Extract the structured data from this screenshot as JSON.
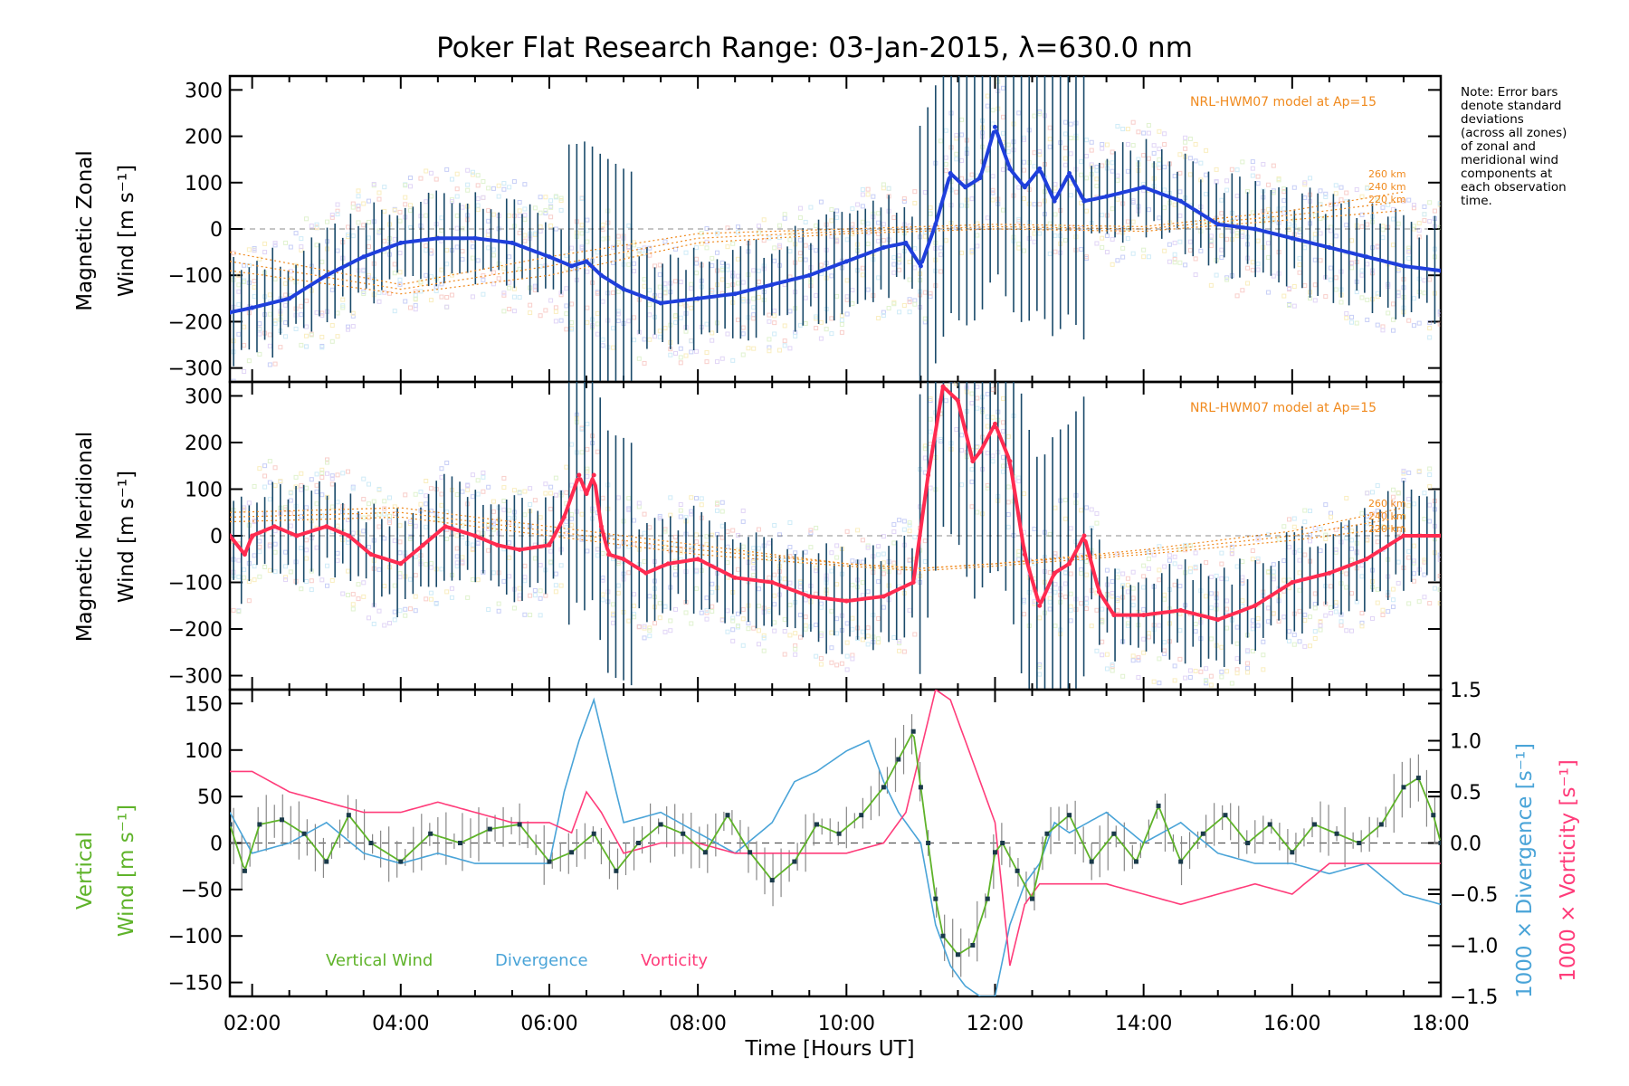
{
  "title": "Poker Flat Research Range: 03-Jan-2015, λ=630.0 nm",
  "note_lines": [
    "Note: Error bars",
    "denote standard",
    "deviations",
    "(across all zones)",
    "of zonal and",
    "meridional wind",
    "components at",
    "each observation",
    "time."
  ],
  "model_label": "NRL-HWM07 model at Ap=15",
  "model_altitudes": [
    "260 km",
    "240 km",
    "220 km"
  ],
  "colors": {
    "zonal": "#1f3fdc",
    "meridional": "#ff2b50",
    "vertical": "#5fb32a",
    "divergence": "#4aa4d8",
    "vorticity": "#ff3c7a",
    "model": "#f08a1e",
    "errorbar": "#1a4a6a"
  },
  "chart_data": [
    {
      "type": "line",
      "name": "zonal",
      "ylabel": [
        "Magnetic Zonal",
        "Wind [m s⁻¹]"
      ],
      "ylim": [
        -330,
        330
      ],
      "yticks": [
        300,
        200,
        100,
        0,
        -100,
        -200,
        -300
      ],
      "xlim": [
        1.7,
        18.0
      ],
      "series": [
        {
          "name": "",
          "x": [
            1.7,
            2.0,
            2.5,
            3.0,
            3.5,
            4.0,
            4.5,
            5.0,
            5.5,
            6.0,
            6.3,
            6.5,
            6.7,
            7.0,
            7.5,
            8.0,
            8.5,
            9.0,
            9.5,
            10.0,
            10.5,
            10.8,
            11.0,
            11.2,
            11.4,
            11.6,
            11.8,
            12.0,
            12.2,
            12.4,
            12.6,
            12.8,
            13.0,
            13.2,
            13.5,
            14.0,
            14.5,
            15.0,
            15.5,
            16.0,
            16.5,
            17.0,
            17.5,
            18.0
          ],
          "values": [
            -180,
            -170,
            -150,
            -100,
            -60,
            -30,
            -20,
            -20,
            -30,
            -60,
            -80,
            -70,
            -100,
            -130,
            -160,
            -150,
            -140,
            -120,
            -100,
            -70,
            -40,
            -30,
            -80,
            10,
            120,
            90,
            110,
            220,
            130,
            90,
            130,
            60,
            120,
            60,
            70,
            90,
            60,
            10,
            0,
            -20,
            -40,
            -60,
            -80,
            -90
          ]
        }
      ],
      "model_series": [
        {
          "name": "260 km",
          "x": [
            1.7,
            4.0,
            6.0,
            8.0,
            10.0,
            12.0,
            14.0,
            16.0,
            17.5
          ],
          "values": [
            -50,
            -120,
            -60,
            -10,
            0,
            10,
            5,
            40,
            80
          ]
        },
        {
          "name": "240 km",
          "x": [
            1.7,
            4.0,
            6.0,
            8.0,
            10.0,
            12.0,
            14.0,
            16.0,
            17.5
          ],
          "values": [
            -70,
            -130,
            -80,
            -20,
            -5,
            5,
            0,
            30,
            60
          ]
        },
        {
          "name": "220 km",
          "x": [
            1.7,
            4.0,
            6.0,
            8.0,
            10.0,
            12.0,
            14.0,
            16.0,
            17.5
          ],
          "values": [
            -90,
            -140,
            -100,
            -30,
            -10,
            0,
            -5,
            20,
            40
          ]
        }
      ]
    },
    {
      "type": "line",
      "name": "meridional",
      "ylabel": [
        "Magnetic Meridional",
        "Wind [m s⁻¹]"
      ],
      "ylim": [
        -330,
        330
      ],
      "yticks": [
        300,
        200,
        100,
        0,
        -100,
        -200,
        -300
      ],
      "xlim": [
        1.7,
        18.0
      ],
      "series": [
        {
          "name": "",
          "x": [
            1.7,
            1.9,
            2.0,
            2.3,
            2.6,
            3.0,
            3.3,
            3.6,
            4.0,
            4.3,
            4.6,
            5.0,
            5.3,
            5.6,
            6.0,
            6.2,
            6.4,
            6.5,
            6.6,
            6.7,
            6.8,
            7.0,
            7.3,
            7.6,
            8.0,
            8.5,
            9.0,
            9.5,
            10.0,
            10.5,
            10.9,
            11.1,
            11.3,
            11.5,
            11.7,
            11.8,
            12.0,
            12.2,
            12.4,
            12.6,
            12.8,
            13.0,
            13.2,
            13.4,
            13.6,
            14.0,
            14.5,
            15.0,
            15.5,
            16.0,
            16.5,
            17.0,
            17.5,
            18.0
          ],
          "values": [
            0,
            -40,
            0,
            20,
            0,
            20,
            0,
            -40,
            -60,
            -20,
            20,
            0,
            -20,
            -30,
            -20,
            40,
            130,
            90,
            130,
            20,
            -40,
            -50,
            -80,
            -60,
            -50,
            -90,
            -100,
            -130,
            -140,
            -130,
            -100,
            130,
            320,
            290,
            160,
            180,
            240,
            160,
            -40,
            -150,
            -80,
            -60,
            0,
            -120,
            -170,
            -170,
            -160,
            -180,
            -150,
            -100,
            -80,
            -50,
            0,
            0
          ]
        }
      ],
      "model_series": [
        {
          "name": "260 km",
          "x": [
            1.7,
            4.0,
            6.0,
            8.0,
            10.0,
            11.0,
            12.0,
            14.0,
            16.0,
            17.5
          ],
          "values": [
            50,
            60,
            20,
            -20,
            -60,
            -70,
            -60,
            -30,
            10,
            60
          ]
        },
        {
          "name": "240 km",
          "x": [
            1.7,
            4.0,
            6.0,
            8.0,
            10.0,
            11.0,
            12.0,
            14.0,
            16.0,
            17.5
          ],
          "values": [
            40,
            50,
            10,
            -30,
            -60,
            -70,
            -60,
            -35,
            0,
            40
          ]
        },
        {
          "name": "220 km",
          "x": [
            1.7,
            4.0,
            6.0,
            8.0,
            10.0,
            11.0,
            12.0,
            14.0,
            16.0,
            17.5
          ],
          "values": [
            30,
            40,
            0,
            -40,
            -65,
            -75,
            -65,
            -40,
            -10,
            20
          ]
        }
      ]
    },
    {
      "type": "line",
      "name": "vertical",
      "ylabel_green": [
        "Vertical",
        "Wind [m s⁻¹]"
      ],
      "right_label_blue": "1000 × Divergence [s⁻¹]",
      "right_label_pink": "1000 × Vorticity [s⁻¹]",
      "ylim": [
        -165,
        165
      ],
      "yticks": [
        150,
        100,
        50,
        0,
        -50,
        -100,
        -150
      ],
      "y2lim": [
        -1.5,
        1.5
      ],
      "y2ticks": [
        "1.5",
        "1.0",
        "0.5",
        "0.0",
        "−0.5",
        "−1.0",
        "−1.5"
      ],
      "xlim": [
        1.7,
        18.0
      ],
      "xticks": [
        "02:00",
        "04:00",
        "06:00",
        "08:00",
        "10:00",
        "12:00",
        "14:00",
        "16:00",
        "18:00"
      ],
      "xlabel": "Time [Hours UT]",
      "legend": [
        "Vertical Wind",
        "Divergence",
        "Vorticity"
      ],
      "series": [
        {
          "name": "Vertical Wind",
          "x": [
            1.7,
            1.9,
            2.1,
            2.4,
            2.7,
            3.0,
            3.3,
            3.6,
            4.0,
            4.4,
            4.8,
            5.2,
            5.6,
            6.0,
            6.3,
            6.6,
            6.9,
            7.2,
            7.5,
            7.8,
            8.1,
            8.4,
            8.7,
            9.0,
            9.3,
            9.6,
            9.9,
            10.2,
            10.5,
            10.7,
            10.9,
            11.0,
            11.1,
            11.2,
            11.3,
            11.5,
            11.7,
            11.9,
            12.0,
            12.1,
            12.3,
            12.5,
            12.7,
            13.0,
            13.3,
            13.6,
            13.9,
            14.2,
            14.5,
            14.8,
            15.1,
            15.4,
            15.7,
            16.0,
            16.3,
            16.6,
            16.9,
            17.2,
            17.5,
            17.7,
            17.9,
            18.0
          ],
          "values": [
            20,
            -30,
            20,
            25,
            10,
            -20,
            30,
            0,
            -20,
            10,
            0,
            15,
            20,
            -20,
            -10,
            10,
            -30,
            0,
            20,
            10,
            -10,
            30,
            -10,
            -40,
            -20,
            20,
            10,
            30,
            60,
            90,
            120,
            60,
            0,
            -60,
            -100,
            -120,
            -110,
            -60,
            -10,
            0,
            -30,
            -60,
            10,
            30,
            -20,
            10,
            -20,
            40,
            -20,
            10,
            30,
            0,
            20,
            -10,
            20,
            10,
            0,
            20,
            60,
            70,
            30,
            0
          ]
        },
        {
          "name": "Divergence",
          "x": [
            1.7,
            2.0,
            2.5,
            3.0,
            3.5,
            4.0,
            4.5,
            5.0,
            5.5,
            6.0,
            6.2,
            6.4,
            6.6,
            6.8,
            7.0,
            7.5,
            8.0,
            8.5,
            9.0,
            9.3,
            9.6,
            10.0,
            10.3,
            10.5,
            10.7,
            11.0,
            11.2,
            11.4,
            11.6,
            11.8,
            12.0,
            12.2,
            12.4,
            12.6,
            12.8,
            13.0,
            13.5,
            14.0,
            14.5,
            15.0,
            15.5,
            16.0,
            16.5,
            17.0,
            17.5,
            18.0
          ],
          "values": [
            0.3,
            -0.1,
            0.0,
            0.2,
            -0.1,
            -0.2,
            -0.1,
            -0.2,
            -0.2,
            -0.2,
            0.5,
            1.0,
            1.4,
            0.8,
            0.2,
            0.3,
            0.1,
            -0.1,
            0.2,
            0.6,
            0.7,
            0.9,
            1.0,
            0.6,
            0.3,
            0.0,
            -0.8,
            -1.2,
            -1.4,
            -1.5,
            -1.5,
            -0.8,
            -0.4,
            -0.2,
            0.2,
            0.1,
            0.3,
            0.0,
            0.2,
            -0.1,
            -0.2,
            -0.2,
            -0.3,
            -0.2,
            -0.5,
            -0.6
          ]
        },
        {
          "name": "Vorticity",
          "x": [
            1.7,
            2.0,
            2.5,
            3.0,
            3.5,
            4.0,
            4.5,
            5.0,
            5.5,
            6.0,
            6.3,
            6.5,
            6.7,
            7.0,
            7.5,
            8.0,
            8.5,
            9.0,
            9.5,
            10.0,
            10.5,
            10.8,
            11.0,
            11.2,
            11.4,
            11.6,
            11.8,
            12.0,
            12.2,
            12.4,
            12.6,
            13.0,
            13.5,
            14.0,
            14.5,
            15.0,
            15.5,
            16.0,
            16.5,
            17.0,
            17.5,
            18.0
          ],
          "values": [
            0.7,
            0.7,
            0.5,
            0.4,
            0.3,
            0.3,
            0.4,
            0.3,
            0.2,
            0.2,
            0.1,
            0.5,
            0.3,
            -0.1,
            0.0,
            0.0,
            -0.1,
            -0.1,
            -0.1,
            -0.1,
            0.0,
            0.3,
            0.9,
            1.5,
            1.4,
            1.0,
            0.6,
            0.2,
            -1.2,
            -0.6,
            -0.4,
            -0.4,
            -0.4,
            -0.5,
            -0.6,
            -0.5,
            -0.4,
            -0.5,
            -0.2,
            -0.2,
            -0.2,
            -0.2
          ]
        }
      ]
    }
  ]
}
